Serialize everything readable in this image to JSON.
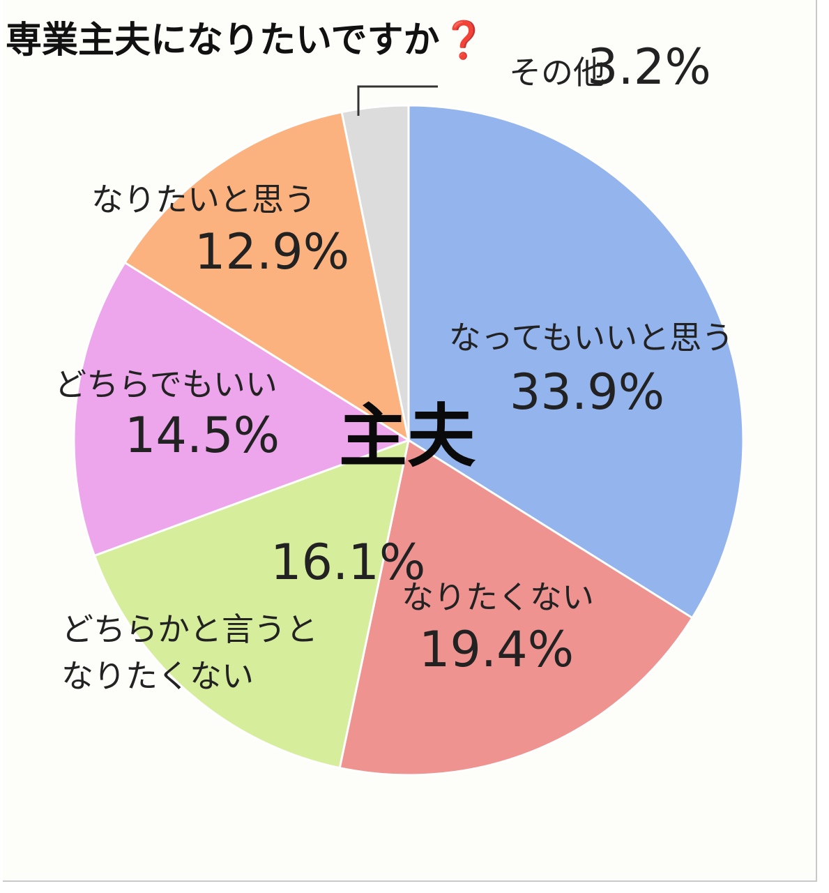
{
  "title": "専業主夫になりたいですか",
  "title_mark": "❓",
  "center_label": "主夫",
  "chart_data": {
    "type": "pie",
    "title": "専業主夫になりたいですか",
    "start": "12 o'clock",
    "direction": "clockwise",
    "slices": [
      {
        "label": "なってもいいと思う",
        "value": 33.9,
        "display": "33.9%",
        "color": "#94b4ee"
      },
      {
        "label": "なりたくない",
        "value": 19.4,
        "display": "19.4%",
        "color": "#ef9391"
      },
      {
        "label": "どちらかと言うと\nなりたくない",
        "value": 16.1,
        "display": "16.1%",
        "color": "#d6ee9c"
      },
      {
        "label": "どちらでもいい",
        "value": 14.5,
        "display": "14.5%",
        "color": "#eda5eb"
      },
      {
        "label": "なりたいと思う",
        "value": 12.9,
        "display": "12.9%",
        "color": "#fbb27e"
      },
      {
        "label": "その他",
        "value": 3.2,
        "display": "3.2%",
        "color": "#dcdcdc"
      }
    ]
  }
}
